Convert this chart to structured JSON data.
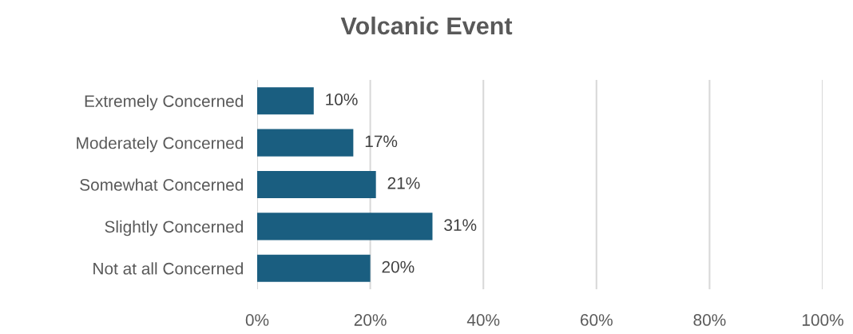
{
  "chart_data": {
    "type": "bar",
    "orientation": "horizontal",
    "title": "Volcanic Event",
    "categories": [
      "Extremely Concerned",
      "Moderately Concerned",
      "Somewhat Concerned",
      "Slightly Concerned",
      "Not at all Concerned"
    ],
    "values": [
      10,
      17,
      21,
      31,
      20
    ],
    "value_labels": [
      "10%",
      "17%",
      "21%",
      "31%",
      "20%"
    ],
    "color": "#1a5e80",
    "xlim": [
      0,
      100
    ],
    "xticks": [
      {
        "value": 0,
        "label": "0%"
      },
      {
        "value": 20,
        "label": "20%"
      },
      {
        "value": 40,
        "label": "40%"
      },
      {
        "value": 60,
        "label": "60%"
      },
      {
        "value": 80,
        "label": "80%"
      },
      {
        "value": 100,
        "label": "100%"
      }
    ],
    "grid": "x",
    "legend": false
  }
}
